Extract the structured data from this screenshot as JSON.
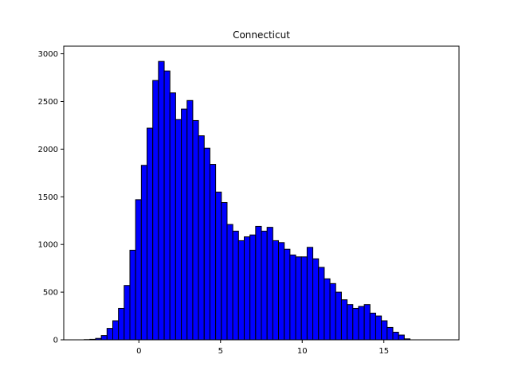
{
  "chart_data": {
    "type": "bar",
    "title": "Connecticut",
    "xlabel": "",
    "ylabel": "",
    "xlim": [
      -4.6,
      19.6
    ],
    "ylim": [
      0,
      3080
    ],
    "xticks": [
      0,
      5,
      10,
      15
    ],
    "yticks": [
      0,
      500,
      1000,
      1500,
      2000,
      2500,
      3000
    ],
    "bin_width": 0.35,
    "bin_start": -3.35,
    "values": [
      2,
      5,
      15,
      45,
      120,
      200,
      330,
      570,
      940,
      1470,
      1830,
      2220,
      2720,
      2920,
      2820,
      2590,
      2310,
      2420,
      2510,
      2300,
      2140,
      2010,
      1840,
      1550,
      1440,
      1210,
      1140,
      1040,
      1080,
      1100,
      1190,
      1140,
      1180,
      1040,
      1020,
      950,
      890,
      870,
      870,
      970,
      850,
      760,
      640,
      590,
      500,
      420,
      370,
      330,
      350,
      370,
      280,
      250,
      200,
      130,
      80,
      50,
      10,
      0
    ],
    "bar_color": "#0000ff",
    "edge_color": "#000000",
    "grid": false,
    "legend": "none"
  }
}
